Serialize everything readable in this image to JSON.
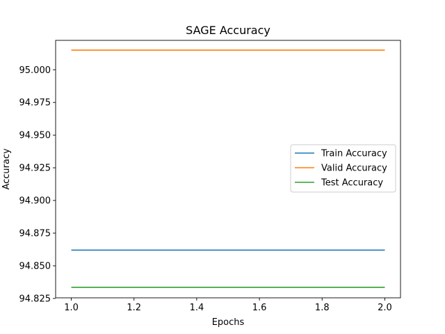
{
  "chart_data": {
    "type": "line",
    "title": "SAGE Accuracy",
    "xlabel": "Epochs",
    "ylabel": "Accuracy",
    "x": [
      1.0,
      2.0
    ],
    "xlim": [
      0.95,
      2.05
    ],
    "ylim": [
      94.8255,
      95.0225
    ],
    "xticks": [
      1.0,
      1.2,
      1.4,
      1.6,
      1.8,
      2.0
    ],
    "xtick_labels": [
      "1.0",
      "1.2",
      "1.4",
      "1.6",
      "1.8",
      "2.0"
    ],
    "yticks": [
      94.825,
      94.85,
      94.875,
      94.9,
      94.925,
      94.95,
      94.975,
      95.0
    ],
    "ytick_labels": [
      "94.825",
      "94.850",
      "94.875",
      "94.900",
      "94.925",
      "94.950",
      "94.975",
      "95.000"
    ],
    "grid": false,
    "legend_position": "center-right",
    "series": [
      {
        "name": "Train Accuracy",
        "values": [
          94.862,
          94.862
        ],
        "color": "#1f77b4"
      },
      {
        "name": "Valid Accuracy",
        "values": [
          95.015,
          95.015
        ],
        "color": "#ff7f0e"
      },
      {
        "name": "Test Accuracy",
        "values": [
          94.8335,
          94.8335
        ],
        "color": "#2ca02c"
      }
    ]
  }
}
